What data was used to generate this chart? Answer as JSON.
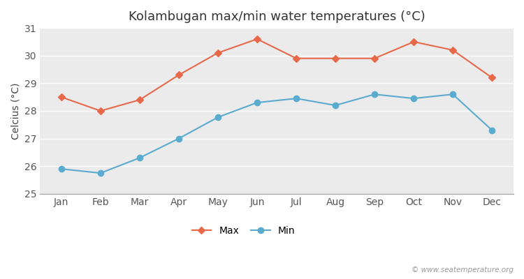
{
  "title": "Kolambugan max/min water temperatures (°C)",
  "ylabel": "Celcius (°C)",
  "months": [
    "Jan",
    "Feb",
    "Mar",
    "Apr",
    "May",
    "Jun",
    "Jul",
    "Aug",
    "Sep",
    "Oct",
    "Nov",
    "Dec"
  ],
  "max_temps": [
    28.5,
    28.0,
    28.4,
    29.3,
    30.1,
    30.6,
    29.9,
    29.9,
    29.9,
    30.5,
    30.2,
    29.2
  ],
  "min_temps": [
    25.9,
    25.75,
    26.3,
    27.0,
    27.77,
    28.3,
    28.45,
    28.2,
    28.6,
    28.45,
    28.6,
    27.3
  ],
  "max_color": "#e8694a",
  "min_color": "#5aabcd",
  "outer_bg": "#ffffff",
  "plot_bg_color": "#ebebeb",
  "ylim": [
    25,
    31
  ],
  "yticks": [
    25,
    26,
    27,
    28,
    29,
    30,
    31
  ],
  "grid_color": "#ffffff",
  "watermark": "© www.seatemperature.org",
  "legend_labels": [
    "Max",
    "Min"
  ],
  "title_fontsize": 13,
  "label_fontsize": 10,
  "tick_fontsize": 10
}
